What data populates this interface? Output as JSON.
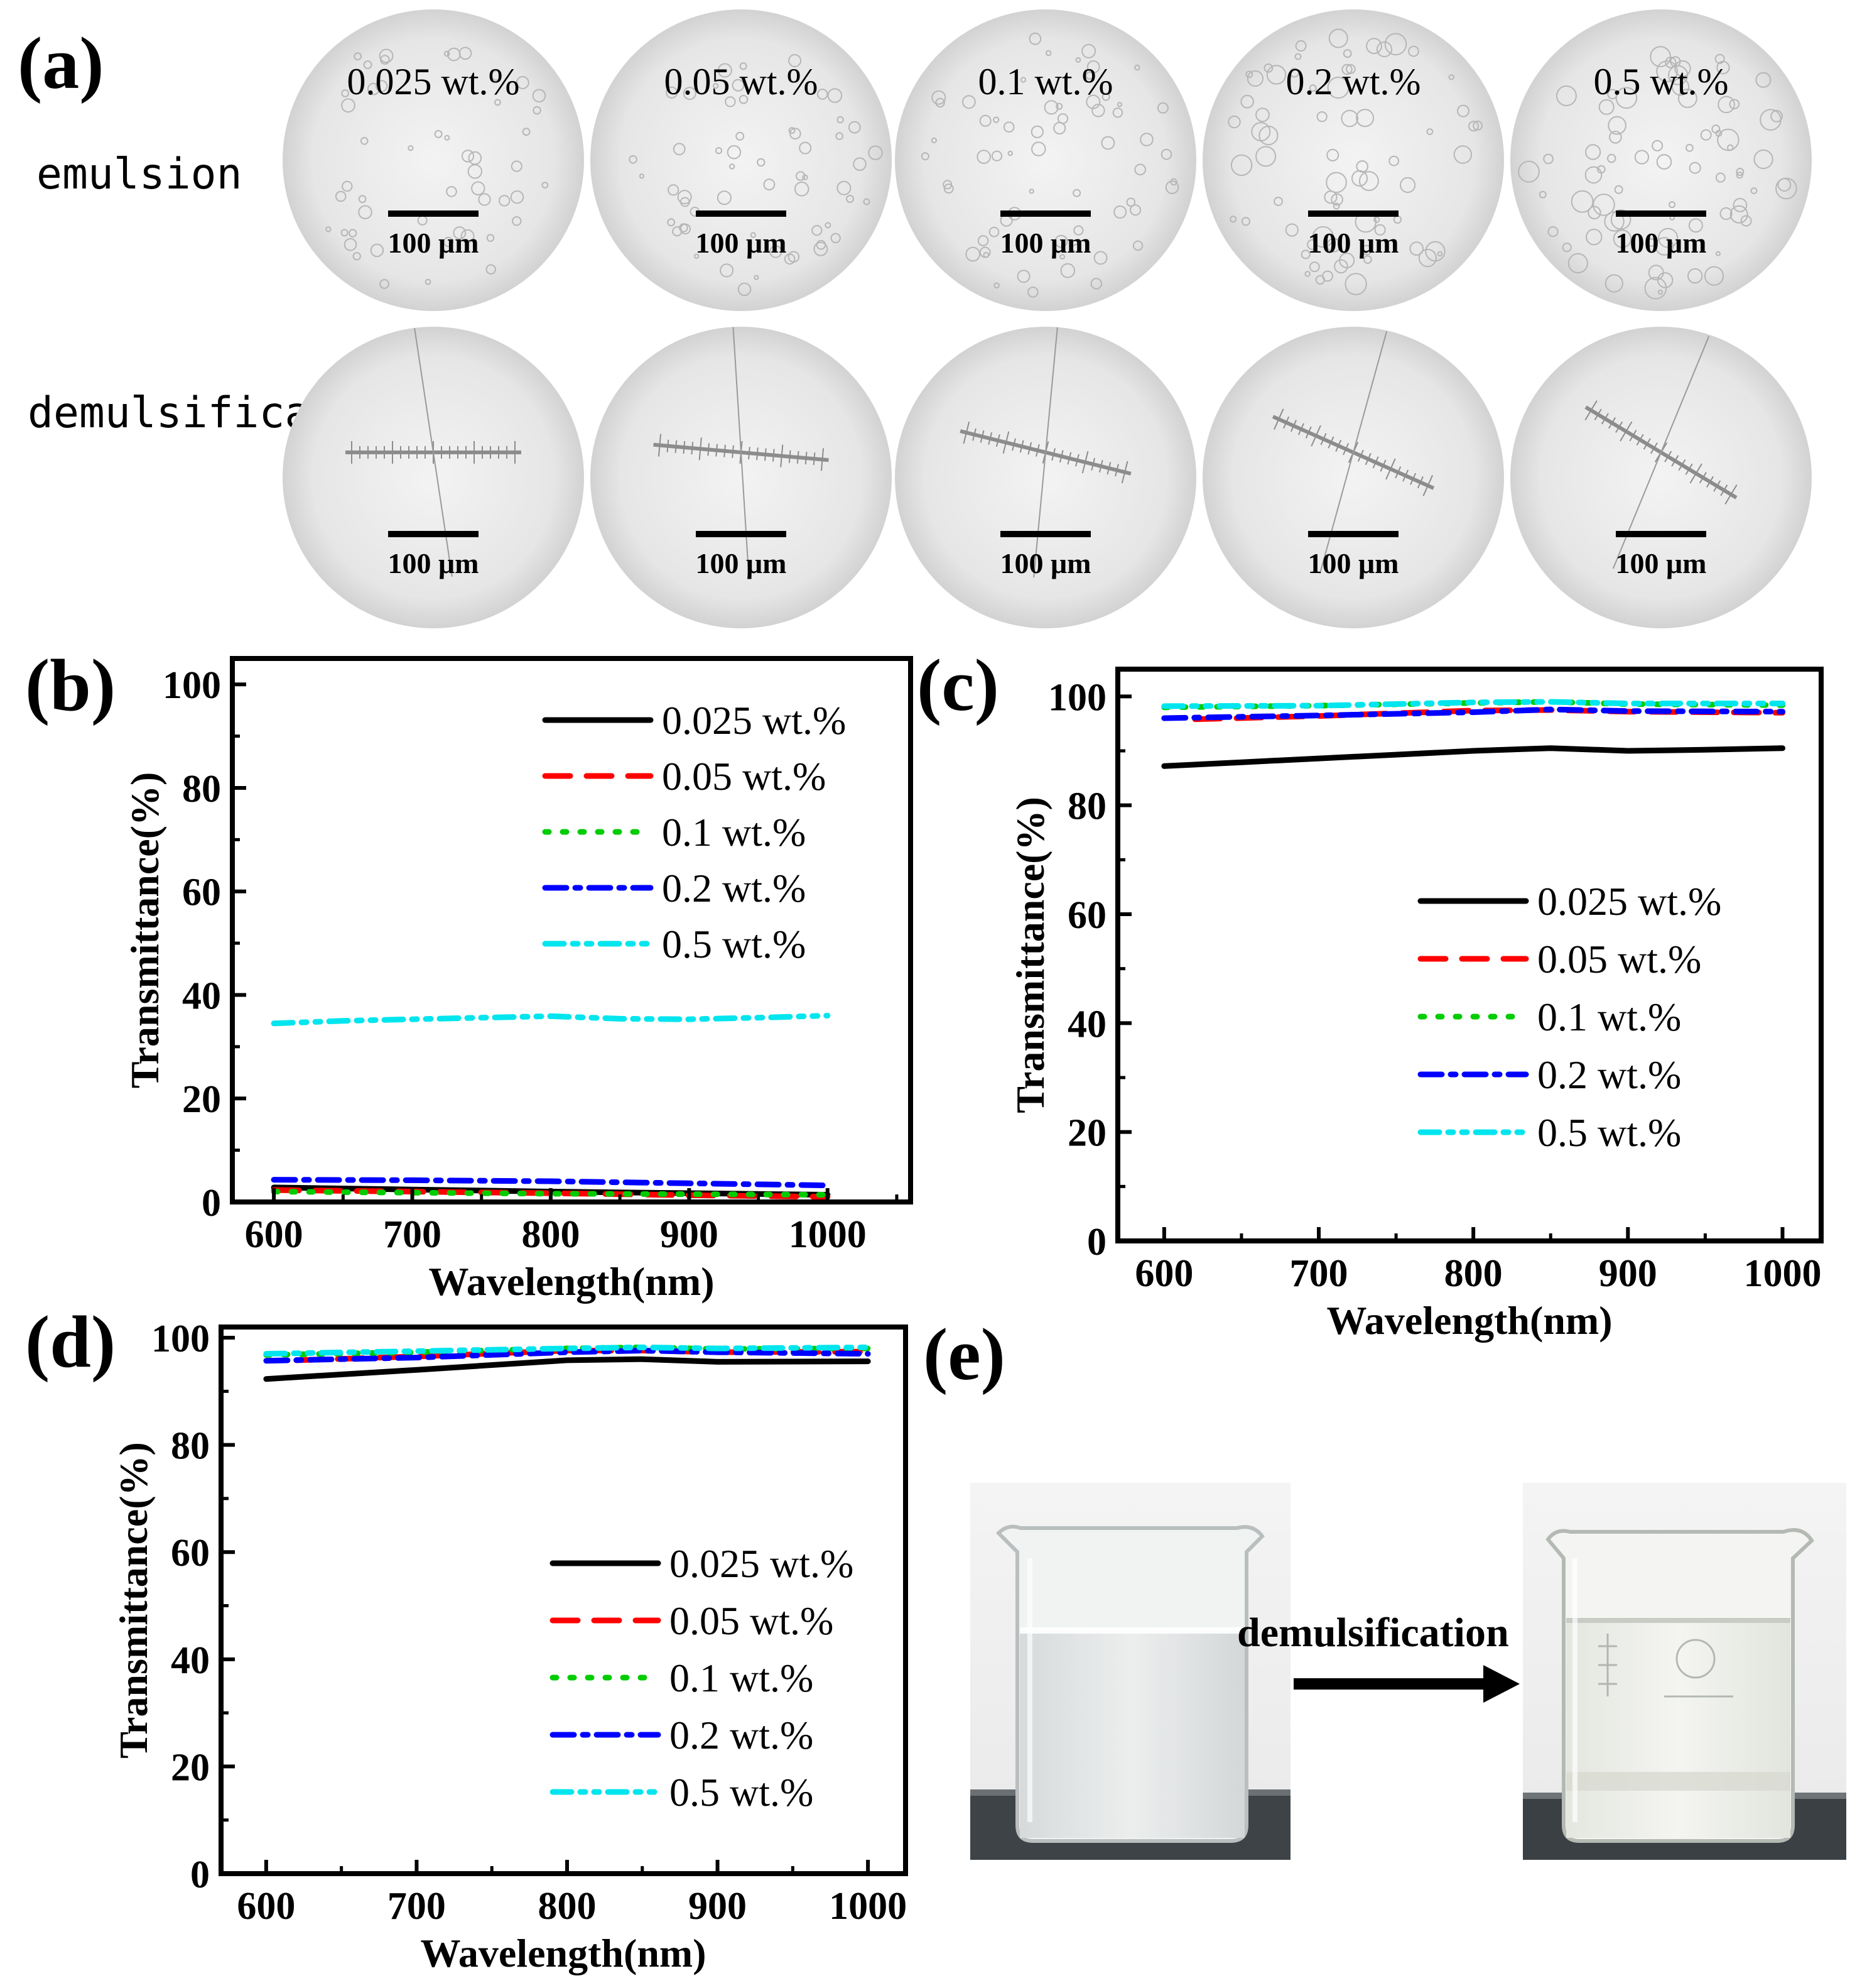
{
  "panel_a": {
    "label": "(a)",
    "row_labels": [
      "emulsion",
      "demulsification"
    ],
    "concentrations": [
      "0.025 wt.%",
      "0.05 wt.%",
      "0.1 wt.%",
      "0.2 wt.%",
      "0.5 wt.%"
    ],
    "scale_bar": "100 μm"
  },
  "panel_e": {
    "label": "(e)",
    "arrow_text": "demulsification"
  },
  "chart_data": [
    {
      "panel": "(b)",
      "type": "line",
      "title": "",
      "xlabel": "Wavelength(nm)",
      "ylabel": "Transmittance(%)",
      "xlim": [
        570,
        1060
      ],
      "ylim": [
        0,
        105
      ],
      "xticks": [
        600,
        700,
        800,
        900,
        1000
      ],
      "yticks": [
        0,
        20,
        40,
        60,
        80,
        100
      ],
      "legend_position": "top-right",
      "series": [
        {
          "name": "0.025 wt.%",
          "color": "#000000",
          "style": "solid",
          "x": [
            600,
            700,
            800,
            900,
            1000
          ],
          "y": [
            2.8,
            2.4,
            2.0,
            1.7,
            1.4
          ]
        },
        {
          "name": "0.05 wt.%",
          "color": "#ff0000",
          "style": "dash",
          "x": [
            600,
            700,
            800,
            900,
            1000
          ],
          "y": [
            2.3,
            2.0,
            1.7,
            1.3,
            1.0
          ]
        },
        {
          "name": "0.1 wt.%",
          "color": "#00cc00",
          "style": "dot",
          "x": [
            600,
            700,
            800,
            900,
            1000
          ],
          "y": [
            2.0,
            1.8,
            1.6,
            1.5,
            1.4
          ]
        },
        {
          "name": "0.2 wt.%",
          "color": "#0000ff",
          "style": "dashdot",
          "x": [
            600,
            700,
            800,
            900,
            1000
          ],
          "y": [
            4.3,
            4.2,
            4.0,
            3.6,
            3.2
          ]
        },
        {
          "name": "0.5 wt.%",
          "color": "#00e5ee",
          "style": "dashdotdot",
          "x": [
            600,
            650,
            700,
            750,
            800,
            850,
            900,
            950,
            1000
          ],
          "y": [
            34.5,
            35.0,
            35.3,
            35.6,
            35.9,
            35.4,
            35.3,
            35.6,
            36.0
          ]
        }
      ]
    },
    {
      "panel": "(c)",
      "type": "line",
      "title": "",
      "xlabel": "Wavelength(nm)",
      "ylabel": "Transmittance(%)",
      "xlim": [
        570,
        1025
      ],
      "ylim": [
        0,
        105
      ],
      "xticks": [
        600,
        700,
        800,
        900,
        1000
      ],
      "yticks": [
        0,
        20,
        40,
        60,
        80,
        100
      ],
      "legend_position": "lower-right",
      "series": [
        {
          "name": "0.025 wt.%",
          "color": "#000000",
          "style": "solid",
          "x": [
            600,
            650,
            700,
            750,
            800,
            850,
            900,
            950,
            1000
          ],
          "y": [
            87.2,
            87.9,
            88.6,
            89.3,
            90.0,
            90.5,
            90.0,
            90.2,
            90.5
          ]
        },
        {
          "name": "0.05 wt.%",
          "color": "#ff0000",
          "style": "dash",
          "x": [
            620,
            700,
            800,
            850,
            900,
            1000
          ],
          "y": [
            95.8,
            96.4,
            97.4,
            97.5,
            97.2,
            97.0
          ]
        },
        {
          "name": "0.1 wt.%",
          "color": "#00cc00",
          "style": "dot",
          "x": [
            600,
            700,
            800,
            850,
            900,
            1000
          ],
          "y": [
            98.0,
            98.3,
            98.8,
            99.0,
            98.6,
            98.4
          ]
        },
        {
          "name": "0.2 wt.%",
          "color": "#0000ff",
          "style": "dashdot",
          "x": [
            600,
            700,
            800,
            850,
            900,
            1000
          ],
          "y": [
            96.0,
            96.5,
            97.1,
            97.6,
            97.3,
            97.2
          ]
        },
        {
          "name": "0.5 wt.%",
          "color": "#00e5ee",
          "style": "dashdotdot",
          "x": [
            600,
            700,
            800,
            850,
            900,
            1000
          ],
          "y": [
            98.2,
            98.3,
            98.9,
            99.0,
            98.7,
            98.7
          ]
        }
      ]
    },
    {
      "panel": "(d)",
      "type": "line",
      "title": "",
      "xlabel": "Wavelength(nm)",
      "ylabel": "Transmittance(%)",
      "xlim": [
        570,
        1025
      ],
      "ylim": [
        0,
        102
      ],
      "xticks": [
        600,
        700,
        800,
        900,
        1000
      ],
      "yticks": [
        0,
        20,
        40,
        60,
        80,
        100
      ],
      "legend_position": "lower-right",
      "series": [
        {
          "name": "0.025 wt.%",
          "color": "#000000",
          "style": "solid",
          "x": [
            600,
            700,
            800,
            850,
            900,
            1000
          ],
          "y": [
            92.3,
            94.0,
            95.8,
            96.0,
            95.5,
            95.6
          ]
        },
        {
          "name": "0.05 wt.%",
          "color": "#ff0000",
          "style": "dash",
          "x": [
            620,
            700,
            800,
            850,
            900,
            1000
          ],
          "y": [
            95.8,
            96.5,
            97.6,
            97.6,
            97.3,
            97.4
          ]
        },
        {
          "name": "0.1 wt.%",
          "color": "#00cc00",
          "style": "dot",
          "x": [
            600,
            700,
            800,
            850,
            900,
            1000
          ],
          "y": [
            96.8,
            97.3,
            98.0,
            98.2,
            97.9,
            98.0
          ]
        },
        {
          "name": "0.2 wt.%",
          "color": "#0000ff",
          "style": "dashdot",
          "x": [
            600,
            700,
            800,
            850,
            900,
            1000
          ],
          "y": [
            95.7,
            96.3,
            97.3,
            97.6,
            97.3,
            97.0
          ]
        },
        {
          "name": "0.5 wt.%",
          "color": "#00e5ee",
          "style": "dashdotdot",
          "x": [
            600,
            700,
            800,
            850,
            900,
            1000
          ],
          "y": [
            97.0,
            97.5,
            98.0,
            98.2,
            98.0,
            98.2
          ]
        }
      ]
    }
  ]
}
